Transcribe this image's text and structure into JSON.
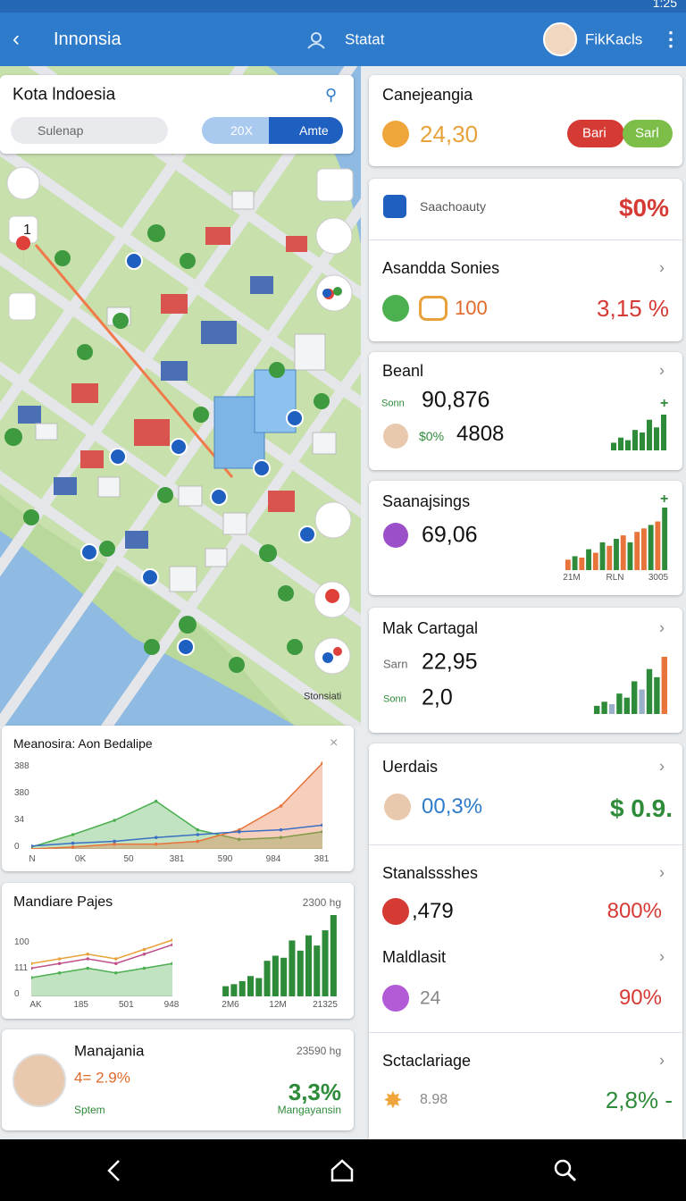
{
  "status_bar": {
    "time": "1:25"
  },
  "header": {
    "title": "Innonsia",
    "center": "Statat",
    "user": "FikKacls"
  },
  "map": {
    "title": "Kota lndoesia",
    "search": "Sulenap",
    "toggle": [
      "20X",
      "Amte"
    ],
    "badge": "1",
    "place": "Stonsiati"
  },
  "left_cards": [
    {
      "title": "Meanosira: Aon Bedalipe",
      "y_labels": [
        "388",
        "380",
        "34",
        "0"
      ],
      "x_labels": [
        "N",
        "0K",
        "50",
        "381",
        "590",
        "984",
        "381"
      ],
      "chart": {
        "type": "line",
        "series": [
          {
            "color": "#4caf50",
            "fill": true,
            "values": [
              2,
              15,
              30,
              50,
              20,
              10,
              12,
              18
            ]
          },
          {
            "color": "#e8743b",
            "fill": true,
            "values": [
              0,
              2,
              5,
              5,
              8,
              20,
              45,
              90
            ]
          },
          {
            "color": "#3b6fc4",
            "fill": false,
            "values": [
              3,
              6,
              8,
              12,
              15,
              18,
              20,
              25
            ]
          }
        ]
      }
    },
    {
      "title": "Mandiare Pajes",
      "note": "2300 hg",
      "y_labels": [
        "100",
        "111",
        "0"
      ],
      "x_labels": [
        "AK",
        "185",
        "501",
        "948"
      ],
      "x2_labels": [
        "2M6",
        "12M",
        "21325"
      ],
      "chart": {
        "type": "line",
        "series": [
          {
            "color": "#e8a23b",
            "fill": false,
            "values": [
              35,
              40,
              45,
              40,
              50,
              60
            ]
          },
          {
            "color": "#c0508a",
            "fill": false,
            "values": [
              30,
              35,
              40,
              35,
              45,
              55
            ]
          },
          {
            "color": "#4caf50",
            "fill": true,
            "values": [
              20,
              25,
              30,
              25,
              30,
              35
            ]
          }
        ]
      },
      "chart2": {
        "type": "bar",
        "color": "#2e8b3a",
        "values": [
          10,
          12,
          15,
          20,
          18,
          35,
          40,
          38,
          55,
          45,
          60,
          50,
          65,
          80
        ]
      }
    },
    {
      "title": "Manajania",
      "note": "23590 hg",
      "change": "4= 2.9%",
      "value": "3,3%",
      "sub": "Sptem",
      "sub2": "Mangayansin"
    }
  ],
  "right_cards": [
    {
      "title": "Canejeangia",
      "value": "24,30",
      "buttons": [
        "Bari",
        "Sarl"
      ]
    },
    {
      "label": "Saachoauty",
      "value": "$0%",
      "title": "Asandda Sonies",
      "value2": "100",
      "value3": "3,15 %"
    },
    {
      "title": "Beanl",
      "label": "Sonn",
      "value": "90,876",
      "label2": "$0%",
      "value2": "4808",
      "plus": "+",
      "chart": {
        "type": "bar",
        "color": "#2e8b3a",
        "values": [
          15,
          25,
          20,
          40,
          35,
          60,
          45,
          70
        ]
      }
    },
    {
      "title": "Saanajsings",
      "value": "69,06",
      "plus": "+",
      "x_labels": [
        "21M",
        "RLN",
        "3005"
      ],
      "chart": {
        "type": "bar",
        "colors": [
          "#e8743b",
          "#2e8b3a",
          "#e8743b",
          "#2e8b3a",
          "#e8743b",
          "#2e8b3a",
          "#e8743b",
          "#2e8b3a",
          "#e8743b",
          "#2e8b3a",
          "#e8743b",
          "#e8743b",
          "#2e8b3a",
          "#e8743b",
          "#2e8b3a"
        ],
        "values": [
          15,
          20,
          18,
          30,
          25,
          40,
          35,
          45,
          50,
          40,
          55,
          60,
          65,
          70,
          90
        ]
      }
    },
    {
      "title": "Mak Cartagal",
      "label": "Sarn",
      "value": "22,95",
      "label2": "Sonn",
      "value2": "2,0",
      "chart": {
        "type": "bar",
        "colors": [
          "#2e8b3a",
          "#2e8b3a",
          "#9bb0c8",
          "#2e8b3a",
          "#2e8b3a",
          "#2e8b3a",
          "#9bb0c8",
          "#2e8b3a",
          "#2e8b3a",
          "#e8743b"
        ],
        "values": [
          10,
          15,
          12,
          25,
          20,
          40,
          30,
          55,
          45,
          70
        ]
      }
    },
    {
      "title": "Uerdais",
      "value": "00,3%",
      "value2": "$ 0.9.",
      "title2": "Stanalssshes",
      "value3": ",479",
      "value4": "800%",
      "title3": "Maldlasit",
      "value5": "24",
      "value6": "90%",
      "title4": "Sctaclariage",
      "value7": "8.98",
      "value8": "2,8% -"
    }
  ]
}
